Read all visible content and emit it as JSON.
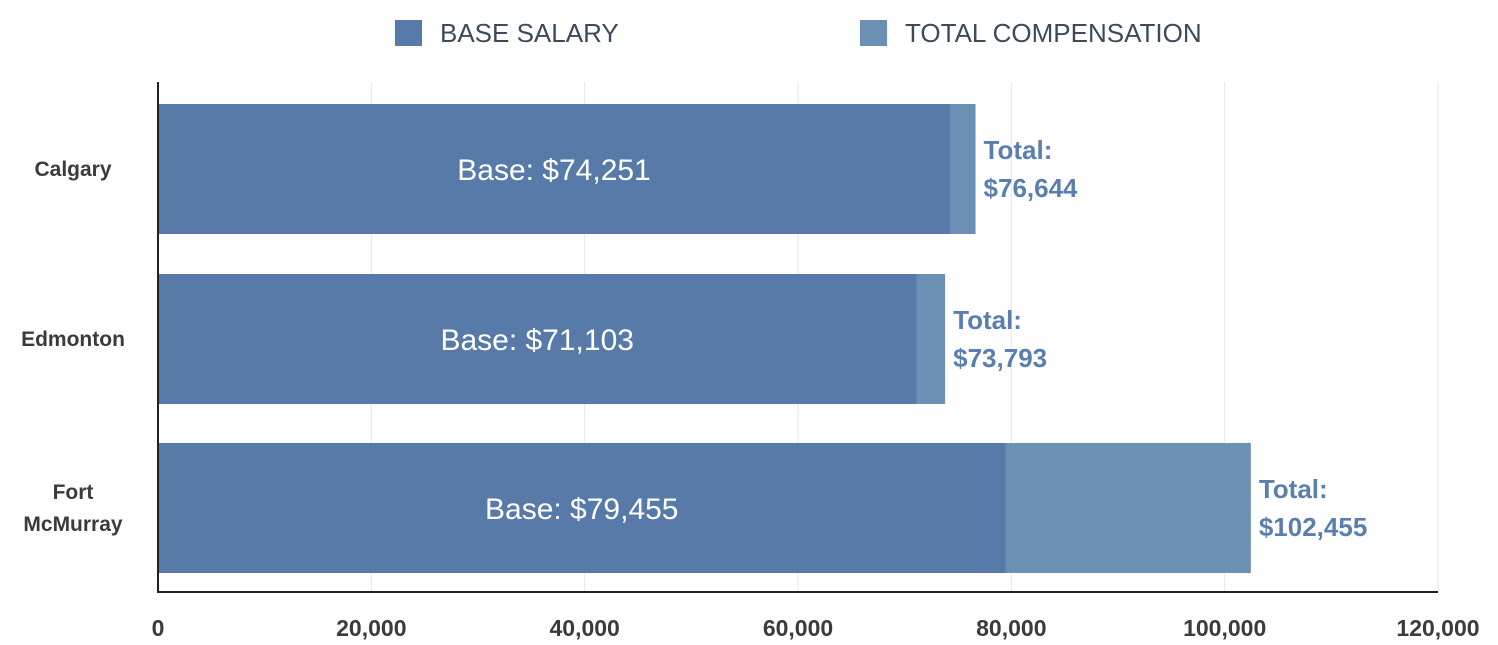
{
  "chart_data": {
    "type": "bar",
    "orientation": "horizontal",
    "categories": [
      "Calgary",
      "Edmonton",
      "Fort McMurray"
    ],
    "category_lines": [
      [
        "Calgary"
      ],
      [
        "Edmonton"
      ],
      [
        "Fort",
        "McMurray"
      ]
    ],
    "series": [
      {
        "name": "BASE SALARY",
        "values": [
          74251,
          71103,
          79455
        ],
        "color": "#577aa8"
      },
      {
        "name": "TOTAL COMPENSATION",
        "values": [
          76644,
          73793,
          102455
        ],
        "color": "#6b90b3"
      }
    ],
    "base_labels": [
      "Base: $74,251",
      "Base: $71,103",
      "Base: $79,455"
    ],
    "total_labels": [
      [
        "Total:",
        "$76,644"
      ],
      [
        "Total:",
        "$73,793"
      ],
      [
        "Total:",
        "$102,455"
      ]
    ],
    "xlim": [
      0,
      120000
    ],
    "xticks": [
      0,
      20000,
      40000,
      60000,
      80000,
      100000,
      120000
    ],
    "xtick_labels": [
      "0",
      "20,000",
      "40,000",
      "60,000",
      "80,000",
      "100,000",
      "120,000"
    ],
    "grid": true,
    "legend_position": "top-center",
    "colors": {
      "total_text": "#5a7fae",
      "axis": "#222222",
      "grid": "#e6e6e6"
    }
  }
}
